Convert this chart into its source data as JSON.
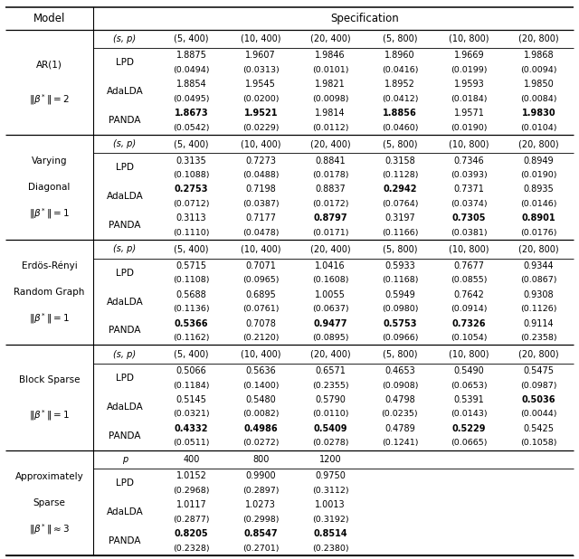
{
  "spec_headers_1": [
    "(s, p)",
    "(5, 400)",
    "(10, 400)",
    "(20, 400)",
    "(5, 800)",
    "(10, 800)",
    "(20, 800)"
  ],
  "spec_headers_2": [
    "p",
    "400",
    "800",
    "1200"
  ],
  "sections": [
    {
      "model_lines": [
        "AR(1)",
        "$\\|\\beta^*\\| = 2$"
      ],
      "type": "sp",
      "rows": [
        {
          "method": "LPD",
          "vals": [
            "1.8875",
            "1.9607",
            "1.9846",
            "1.8960",
            "1.9669",
            "1.9868"
          ],
          "stds": [
            "(0.0494)",
            "(0.0313)",
            "(0.0101)",
            "(0.0416)",
            "(0.0199)",
            "(0.0094)"
          ],
          "bold": [
            false,
            false,
            false,
            false,
            false,
            false
          ]
        },
        {
          "method": "AdaLDA",
          "vals": [
            "1.8854",
            "1.9545",
            "1.9821",
            "1.8952",
            "1.9593",
            "1.9850"
          ],
          "stds": [
            "(0.0495)",
            "(0.0200)",
            "(0.0098)",
            "(0.0412)",
            "(0.0184)",
            "(0.0084)"
          ],
          "bold": [
            false,
            false,
            false,
            false,
            false,
            false
          ]
        },
        {
          "method": "PANDA",
          "vals": [
            "1.8673",
            "1.9521",
            "1.9814",
            "1.8856",
            "1.9571",
            "1.9830"
          ],
          "stds": [
            "(0.0542)",
            "(0.0229)",
            "(0.0112)",
            "(0.0460)",
            "(0.0190)",
            "(0.0104)"
          ],
          "bold": [
            true,
            true,
            false,
            true,
            false,
            true
          ]
        }
      ]
    },
    {
      "model_lines": [
        "Varying",
        "Diagonal",
        "$\\|\\beta^*\\| = 1$"
      ],
      "type": "sp",
      "rows": [
        {
          "method": "LPD",
          "vals": [
            "0.3135",
            "0.7273",
            "0.8841",
            "0.3158",
            "0.7346",
            "0.8949"
          ],
          "stds": [
            "(0.1088)",
            "(0.0488)",
            "(0.0178)",
            "(0.1128)",
            "(0.0393)",
            "(0.0190)"
          ],
          "bold": [
            false,
            false,
            false,
            false,
            false,
            false
          ]
        },
        {
          "method": "AdaLDA",
          "vals": [
            "0.2753",
            "0.7198",
            "0.8837",
            "0.2942",
            "0.7371",
            "0.8935"
          ],
          "stds": [
            "(0.0712)",
            "(0.0387)",
            "(0.0172)",
            "(0.0764)",
            "(0.0374)",
            "(0.0146)"
          ],
          "bold": [
            true,
            false,
            false,
            true,
            false,
            false
          ]
        },
        {
          "method": "PANDA",
          "vals": [
            "0.3113",
            "0.7177",
            "0.8797",
            "0.3197",
            "0.7305",
            "0.8901"
          ],
          "stds": [
            "(0.1110)",
            "(0.0478)",
            "(0.0171)",
            "(0.1166)",
            "(0.0381)",
            "(0.0176)"
          ],
          "bold": [
            false,
            false,
            true,
            false,
            true,
            true
          ]
        }
      ]
    },
    {
      "model_lines": [
        "Erdös-Rényi",
        "Random Graph",
        "$\\|\\beta^*\\| = 1$"
      ],
      "type": "sp",
      "rows": [
        {
          "method": "LPD",
          "vals": [
            "0.5715",
            "0.7071",
            "1.0416",
            "0.5933",
            "0.7677",
            "0.9344"
          ],
          "stds": [
            "(0.1108)",
            "(0.0965)",
            "(0.1608)",
            "(0.1168)",
            "(0.0855)",
            "(0.0867)"
          ],
          "bold": [
            false,
            false,
            false,
            false,
            false,
            false
          ]
        },
        {
          "method": "AdaLDA",
          "vals": [
            "0.5688",
            "0.6895",
            "1.0055",
            "0.5949",
            "0.7642",
            "0.9308"
          ],
          "stds": [
            "(0.1136)",
            "(0.0761)",
            "(0.0637)",
            "(0.0980)",
            "(0.0914)",
            "(0.1126)"
          ],
          "bold": [
            false,
            false,
            false,
            false,
            false,
            false
          ]
        },
        {
          "method": "PANDA",
          "vals": [
            "0.5366",
            "0.7078",
            "0.9477",
            "0.5753",
            "0.7326",
            "0.9114"
          ],
          "stds": [
            "(0.1162)",
            "(0.2120)",
            "(0.0895)",
            "(0.0966)",
            "(0.1054)",
            "(0.2358)"
          ],
          "bold": [
            true,
            false,
            true,
            true,
            true,
            false
          ]
        }
      ]
    },
    {
      "model_lines": [
        "Block Sparse",
        "$\\|\\beta^*\\| = 1$"
      ],
      "type": "sp",
      "rows": [
        {
          "method": "LPD",
          "vals": [
            "0.5066",
            "0.5636",
            "0.6571",
            "0.4653",
            "0.5490",
            "0.5475"
          ],
          "stds": [
            "(0.1184)",
            "(0.1400)",
            "(0.2355)",
            "(0.0908)",
            "(0.0653)",
            "(0.0987)"
          ],
          "bold": [
            false,
            false,
            false,
            false,
            false,
            false
          ]
        },
        {
          "method": "AdaLDA",
          "vals": [
            "0.5145",
            "0.5480",
            "0.5790",
            "0.4798",
            "0.5391",
            "0.5036"
          ],
          "stds": [
            "(0.0321)",
            "(0.0082)",
            "(0.0110)",
            "(0.0235)",
            "(0.0143)",
            "(0.0044)"
          ],
          "bold": [
            false,
            false,
            false,
            false,
            false,
            true
          ]
        },
        {
          "method": "PANDA",
          "vals": [
            "0.4332",
            "0.4986",
            "0.5409",
            "0.4789",
            "0.5229",
            "0.5425"
          ],
          "stds": [
            "(0.0511)",
            "(0.0272)",
            "(0.0278)",
            "(0.1241)",
            "(0.0665)",
            "(0.1058)"
          ],
          "bold": [
            true,
            true,
            true,
            false,
            true,
            false
          ]
        }
      ]
    },
    {
      "model_lines": [
        "Approximately",
        "Sparse",
        "$\\|\\beta^*\\| \\approx 3$"
      ],
      "type": "p",
      "rows": [
        {
          "method": "LPD",
          "vals": [
            "1.0152",
            "0.9900",
            "0.9750",
            "",
            "",
            ""
          ],
          "stds": [
            "(0.2968)",
            "(0.2897)",
            "(0.3112)",
            "",
            "",
            ""
          ],
          "bold": [
            false,
            false,
            false,
            false,
            false,
            false
          ]
        },
        {
          "method": "AdaLDA",
          "vals": [
            "1.0117",
            "1.0273",
            "1.0013",
            "",
            "",
            ""
          ],
          "stds": [
            "(0.2877)",
            "(0.2998)",
            "(0.3192)",
            "",
            "",
            ""
          ],
          "bold": [
            false,
            false,
            false,
            false,
            false,
            false
          ]
        },
        {
          "method": "PANDA",
          "vals": [
            "0.8205",
            "0.8547",
            "0.8514",
            "",
            "",
            ""
          ],
          "stds": [
            "(0.2328)",
            "(0.2701)",
            "(0.2380)",
            "",
            "",
            ""
          ],
          "bold": [
            true,
            true,
            true,
            false,
            false,
            false
          ]
        }
      ]
    }
  ]
}
